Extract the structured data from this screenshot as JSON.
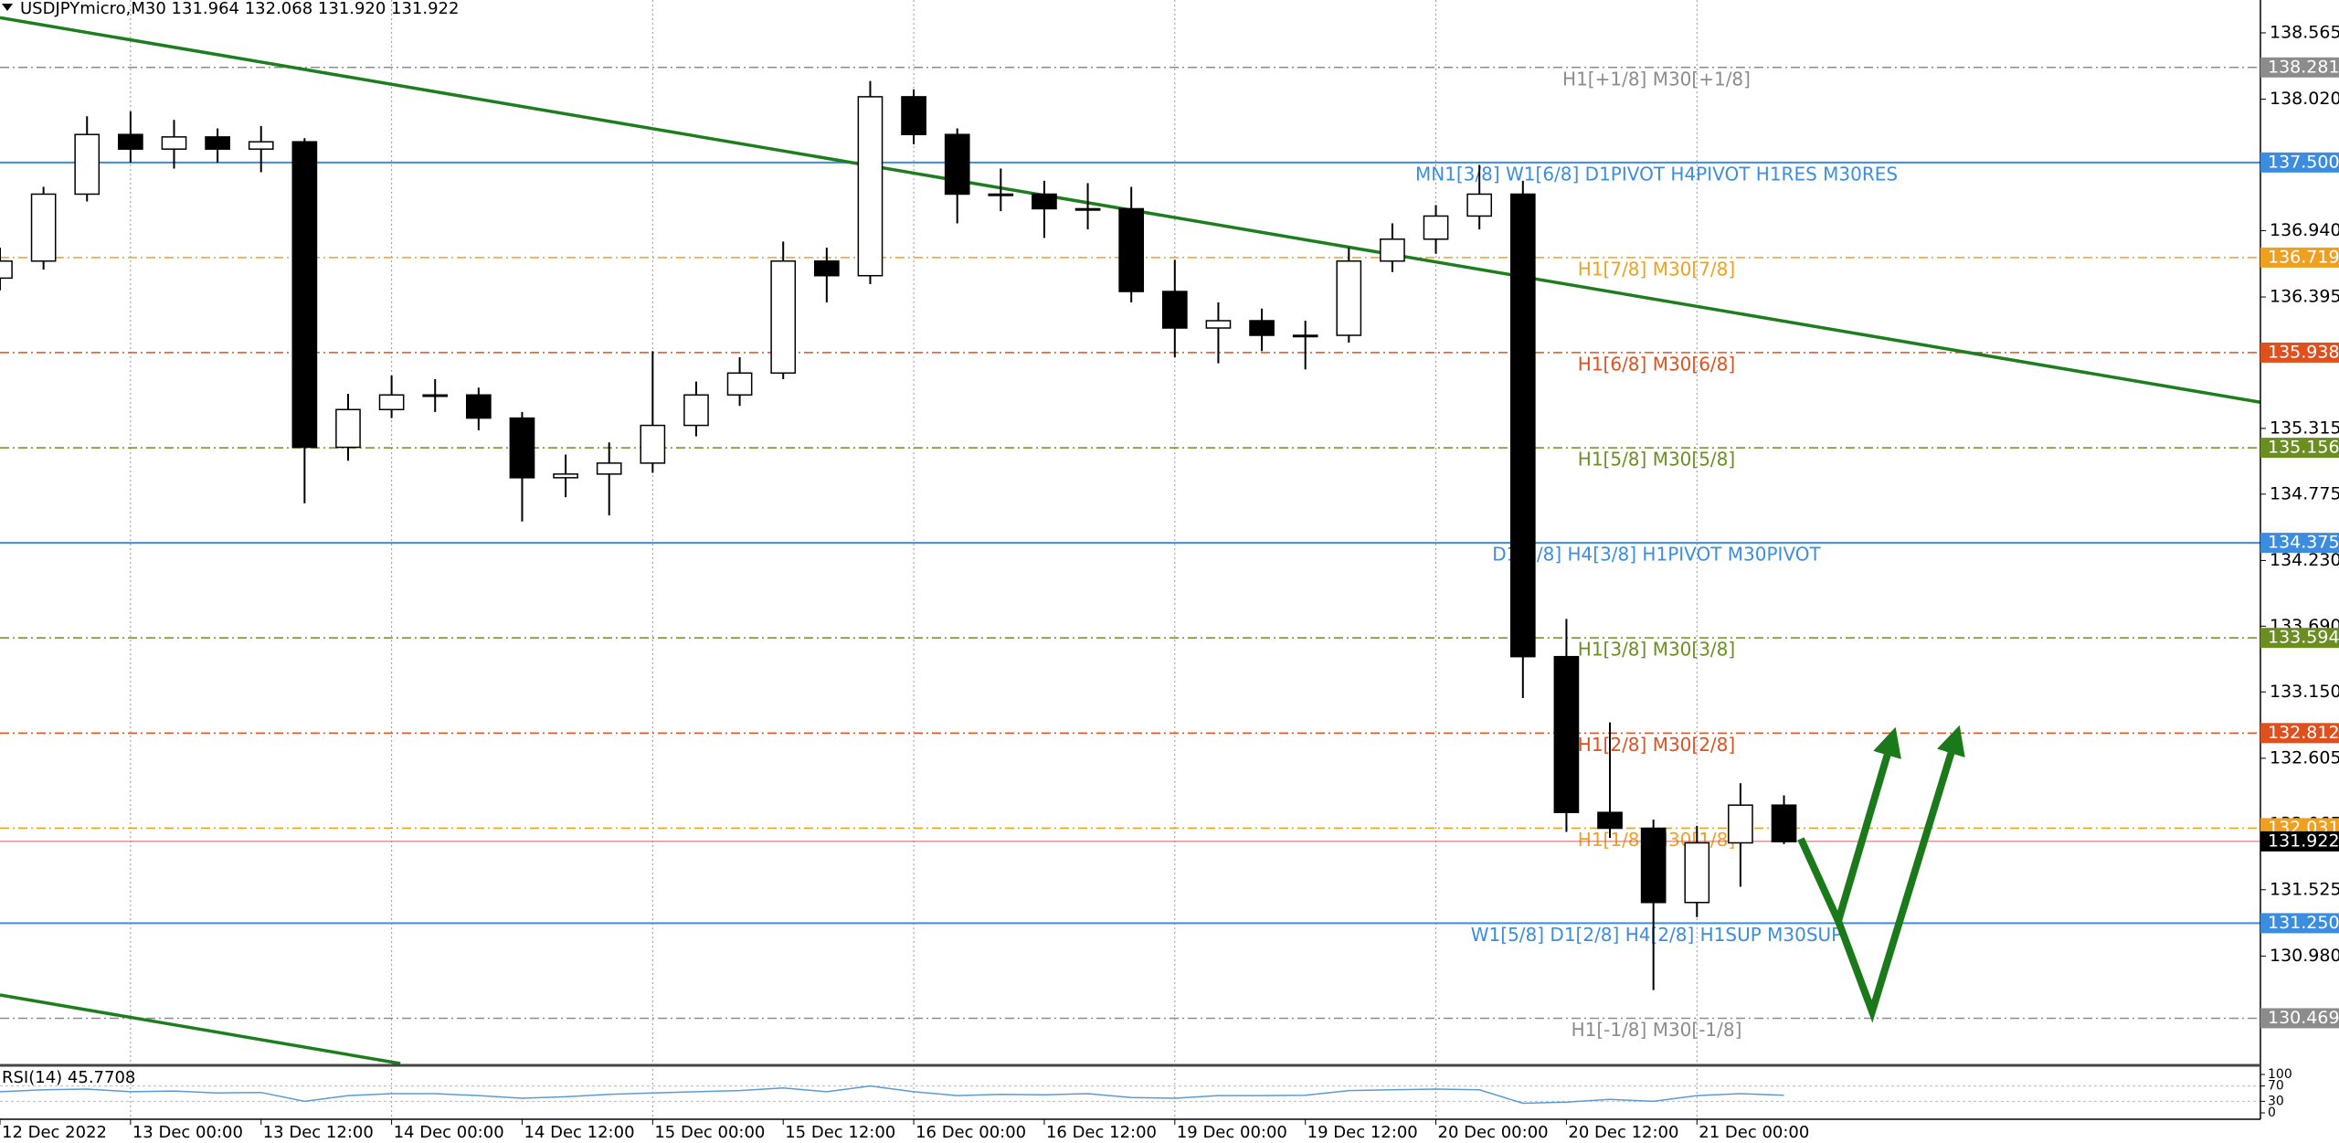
{
  "chart_data": {
    "type": "candlestick",
    "title": "USDJPYmicro,M30  131.964 132.068 131.920 131.922",
    "x": [
      12,
      16,
      20,
      24,
      28,
      32,
      36,
      40,
      44,
      48,
      52,
      56,
      60,
      64,
      68,
      72,
      76,
      80,
      84,
      88,
      92,
      96,
      100,
      104,
      108,
      112,
      116,
      120,
      124,
      128,
      132,
      136,
      140,
      144,
      148,
      152,
      156,
      160,
      164,
      168,
      172,
      176
    ],
    "open": [
      136.55,
      136.69,
      137.24,
      137.73,
      137.61,
      137.71,
      137.61,
      137.67,
      135.16,
      135.47,
      135.59,
      135.59,
      135.4,
      134.91,
      134.94,
      135.03,
      135.34,
      135.59,
      135.77,
      136.69,
      136.57,
      138.04,
      137.73,
      137.24,
      137.24,
      137.12,
      137.12,
      136.44,
      136.14,
      136.2,
      136.08,
      136.08,
      136.69,
      136.87,
      137.06,
      137.24,
      133.44,
      132.16,
      132.03,
      131.42,
      131.91,
      132.22
    ],
    "high": [
      136.8,
      137.3,
      137.88,
      137.92,
      137.85,
      137.78,
      137.8,
      137.7,
      135.6,
      135.75,
      135.72,
      135.65,
      135.45,
      135.1,
      135.2,
      135.95,
      135.7,
      135.9,
      136.85,
      136.8,
      138.17,
      138.1,
      137.78,
      137.45,
      137.35,
      137.33,
      137.3,
      136.7,
      136.35,
      136.3,
      136.2,
      136.8,
      137.0,
      137.15,
      137.48,
      137.35,
      133.75,
      132.9,
      132.1,
      132.05,
      132.4,
      132.3
    ],
    "low": [
      136.45,
      136.62,
      137.18,
      137.5,
      137.45,
      137.5,
      137.42,
      134.7,
      135.05,
      135.4,
      135.45,
      135.3,
      134.55,
      134.75,
      134.6,
      134.95,
      135.25,
      135.5,
      135.72,
      136.35,
      136.5,
      137.65,
      137.0,
      137.1,
      136.88,
      136.95,
      136.35,
      135.9,
      135.85,
      135.95,
      135.8,
      136.02,
      136.6,
      136.75,
      136.95,
      133.1,
      132.0,
      131.95,
      130.7,
      131.3,
      131.55,
      131.9
    ],
    "close": [
      136.69,
      137.24,
      137.73,
      137.61,
      137.71,
      137.61,
      137.67,
      135.16,
      135.47,
      135.59,
      135.59,
      135.4,
      134.91,
      134.94,
      135.03,
      135.34,
      135.59,
      135.77,
      136.69,
      136.57,
      138.04,
      137.73,
      137.24,
      137.24,
      137.12,
      137.12,
      136.44,
      136.14,
      136.2,
      136.08,
      136.08,
      136.69,
      136.87,
      137.06,
      137.24,
      133.44,
      132.16,
      132.03,
      131.42,
      131.91,
      132.22,
      131.92
    ],
    "up_color": "#ffffff",
    "down_color": "#000000",
    "xlim": [
      12,
      219.8
    ],
    "xticks": [
      {
        "value": 12,
        "label": "12 Dec 2022"
      },
      {
        "value": 24,
        "label": "13 Dec 00:00"
      },
      {
        "value": 36,
        "label": "13 Dec 12:00"
      },
      {
        "value": 48,
        "label": "14 Dec 00:00"
      },
      {
        "value": 60,
        "label": "14 Dec 12:00"
      },
      {
        "value": 72,
        "label": "15 Dec 00:00"
      },
      {
        "value": 84,
        "label": "15 Dec 12:00"
      },
      {
        "value": 96,
        "label": "16 Dec 00:00"
      },
      {
        "value": 108,
        "label": "16 Dec 12:00"
      },
      {
        "value": 120,
        "label": "19 Dec 00:00"
      },
      {
        "value": 132,
        "label": "19 Dec 12:00"
      },
      {
        "value": 144,
        "label": "20 Dec 00:00"
      },
      {
        "value": 156,
        "label": "20 Dec 12:00"
      },
      {
        "value": 168,
        "label": "21 Dec 00:00"
      }
    ],
    "ylim": [
      130.097,
      138.835
    ],
    "yticks": [
      138.565,
      {
        "value": 138.02,
        "label": "138.020"
      },
      {
        "value": 136.94,
        "label": "136.940"
      },
      136.395,
      135.315,
      134.775,
      {
        "value": 134.23,
        "label": "134.230"
      },
      {
        "value": 133.69,
        "label": "133.690"
      },
      {
        "value": 133.15,
        "label": "133.150"
      },
      132.605,
      132.065,
      131.525,
      {
        "value": 130.98,
        "label": "130.980"
      }
    ],
    "levels": [
      {
        "value": 138.281,
        "text": "H1[+1/8] M30[+1/8]",
        "color": "#8c8c8c",
        "style": "dashdot"
      },
      {
        "value": 137.5,
        "value_label": "137.500",
        "text": "MN1[3/8] W1[6/8] D1PIVOT H4PIVOT H1RES M30RES",
        "color": "#3c8de0",
        "style": "solid"
      },
      {
        "value": 136.719,
        "text": "H1[7/8] M30[7/8]",
        "color": "#f0a020",
        "style": "dashdot"
      },
      {
        "value": 135.938,
        "text": "H1[6/8] M30[6/8]",
        "color": "#e0501e",
        "style": "dashdot"
      },
      {
        "value": 135.156,
        "text": "H1[5/8] M30[5/8]",
        "color": "#6b8e23",
        "style": "dashdot"
      },
      {
        "value": 134.375,
        "text": "D1[3/8] H4[3/8] H1PIVOT M30PIVOT",
        "color": "#3c8de0",
        "style": "solid"
      },
      {
        "value": 133.594,
        "text": "H1[3/8] M30[3/8]",
        "color": "#6b8e23",
        "style": "dashdot"
      },
      {
        "value": 132.812,
        "text": "H1[2/8] M30[2/8]",
        "color": "#e0501e",
        "style": "dashdot"
      },
      {
        "value": 132.031,
        "text": "H1[1/8] M30[1/8]",
        "color": "#f0a020",
        "style": "dashdot"
      },
      {
        "value": 131.25,
        "value_label": "131.250",
        "text": "W1[5/8] D1[2/8] H4[2/8] H1SUP M30SUP",
        "color": "#3c8de0",
        "style": "solid"
      },
      {
        "value": 130.469,
        "text": "H1[-1/8] M30[-1/8]",
        "color": "#8c8c8c",
        "style": "dashdot"
      }
    ],
    "current_price": 131.922,
    "trendlines": [
      {
        "color": "#1e7d1e",
        "points": [
          [
            12,
            138.69
          ],
          [
            219.8,
            135.53
          ]
        ]
      },
      {
        "color": "#1e7d1e",
        "points": [
          [
            12,
            130.66
          ],
          [
            48.8,
            130.097
          ]
        ]
      }
    ],
    "indicator": {
      "type": "line",
      "title": "RSI(14) 45.7708",
      "color": "#5b9bd5",
      "ylim": [
        0,
        100
      ],
      "yticks": [
        100,
        70,
        30,
        0
      ],
      "values": [
        55,
        60,
        62,
        55,
        57,
        52,
        53,
        30,
        45,
        50,
        50,
        45,
        38,
        42,
        48,
        52,
        55,
        58,
        65,
        55,
        70,
        55,
        45,
        48,
        47,
        50,
        40,
        38,
        45,
        45,
        46,
        58,
        60,
        62,
        60,
        25,
        28,
        35,
        30,
        45,
        50,
        45.7708
      ]
    }
  }
}
